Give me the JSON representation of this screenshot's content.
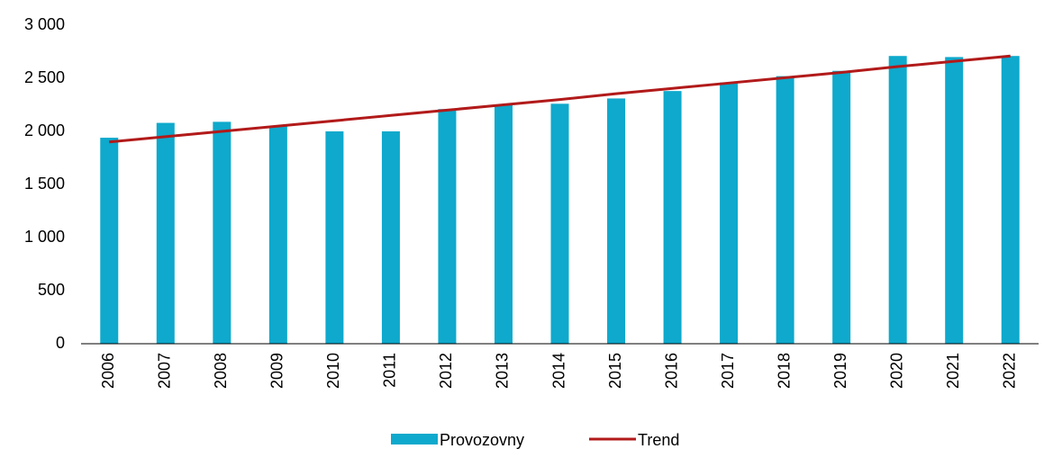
{
  "chart_data": {
    "type": "bar",
    "categories": [
      "2006",
      "2007",
      "2008",
      "2009",
      "2010",
      "2011",
      "2012",
      "2013",
      "2014",
      "2015",
      "2016",
      "2017",
      "2018",
      "2019",
      "2020",
      "2021",
      "2022"
    ],
    "series": [
      {
        "name": "Provozovny",
        "type": "bar",
        "color": "#0ea9cc",
        "values": [
          1940,
          2080,
          2090,
          2050,
          2000,
          2000,
          2210,
          2250,
          2260,
          2310,
          2380,
          2460,
          2520,
          2570,
          2710,
          2700,
          2710
        ]
      },
      {
        "name": "Trend",
        "type": "line",
        "color": "#b21a1a",
        "values": [
          1900,
          1950,
          2000,
          2050,
          2100,
          2150,
          2200,
          2250,
          2300,
          2355,
          2405,
          2455,
          2505,
          2555,
          2610,
          2660,
          2710
        ]
      }
    ],
    "ylim": [
      0,
      3000
    ],
    "yticks": [
      0,
      500,
      {
        "value": 1000,
        "label": "1 000"
      },
      {
        "value": 1500,
        "label": "1 500"
      },
      {
        "value": 2000,
        "label": "2 000"
      },
      {
        "value": 2500,
        "label": "2 500"
      },
      {
        "value": 3000,
        "label": "3 000"
      }
    ],
    "grid": false,
    "legend": "bottom"
  }
}
